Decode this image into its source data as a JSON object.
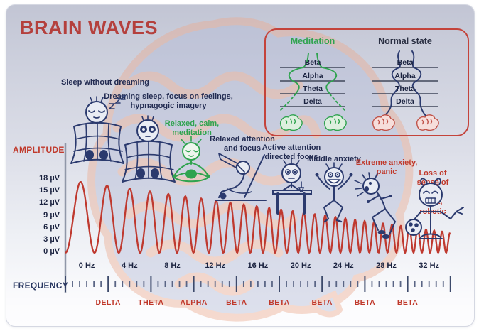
{
  "title": "BRAIN WAVES",
  "colors": {
    "title_red": "#b4403d",
    "accent_red": "#c0392b",
    "wave_red": "#bf392f",
    "navy": "#2b3a6e",
    "green": "#2fa34f",
    "text_dark": "#232c52"
  },
  "legend": {
    "meditation_heading": "Meditation",
    "normal_heading": "Normal state",
    "bands": [
      "Beta",
      "Alpha",
      "Theta",
      "Delta"
    ]
  },
  "amplitude": {
    "label": "AMPLITUDE",
    "ticks": [
      "18 µV",
      "15 µV",
      "12 µV",
      "9 µV",
      "6 µV",
      "3 µV",
      "0 µV"
    ]
  },
  "frequency": {
    "label": "FREQUENCY",
    "ticks": [
      "0 Hz",
      "4 Hz",
      "8 Hz",
      "12 Hz",
      "16 Hz",
      "20 Hz",
      "24 Hz",
      "28 Hz",
      "32 Hz"
    ],
    "bands": [
      "DELTA",
      "THETA",
      "ALPHA",
      "BETA",
      "BETA",
      "BETA",
      "BETA",
      "BETA"
    ]
  },
  "stages": [
    {
      "label": "Sleep without dreaming",
      "color": "navy"
    },
    {
      "label": "Dreaming sleep, focus on feelings,\nhypnagogic imagery",
      "color": "navy"
    },
    {
      "label": "Relaxed, calm,\nmeditation",
      "color": "green"
    },
    {
      "label": "Relaxed attention\nand focus",
      "color": "navy"
    },
    {
      "label": "Active attention\ndirected focus",
      "color": "navy"
    },
    {
      "label": "Middle anxiety",
      "color": "navy"
    },
    {
      "label": "Extreme anxiety,\npanic",
      "color": "red"
    },
    {
      "label": "Loss of sense of self,\nfight, robotic",
      "color": "red"
    }
  ],
  "wave": {
    "baseline_uv": 0,
    "peak_start_uv": 18,
    "peak_end_uv": 5,
    "freq_start_hz": 0,
    "freq_end_hz": 32,
    "color": "#bf392f"
  }
}
